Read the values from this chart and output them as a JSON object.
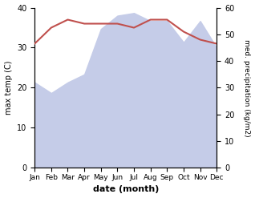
{
  "months": [
    "Jan",
    "Feb",
    "Mar",
    "Apr",
    "May",
    "Jun",
    "Jul",
    "Aug",
    "Sep",
    "Oct",
    "Nov",
    "Dec"
  ],
  "max_temp": [
    31,
    35,
    37,
    36,
    36,
    36,
    35,
    37,
    37,
    34,
    32,
    31
  ],
  "precipitation": [
    32,
    28,
    32,
    35,
    52,
    57,
    58,
    55,
    55,
    47,
    55,
    45
  ],
  "temp_color": "#c0504d",
  "precip_fill_color": "#c5cce8",
  "left_ylim": [
    0,
    40
  ],
  "right_ylim": [
    0,
    60
  ],
  "xlabel": "date (month)",
  "ylabel_left": "max temp (C)",
  "ylabel_right": "med. precipitation (kg/m2)",
  "bg_color": "#ffffff"
}
